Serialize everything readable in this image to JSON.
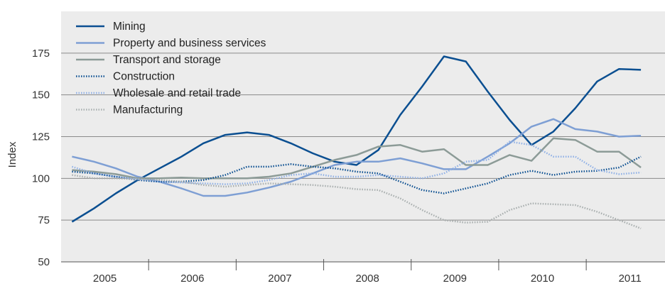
{
  "chart_data": {
    "type": "line",
    "ylabel": "Index",
    "xlabel": "",
    "ylim": [
      50,
      200
    ],
    "yticks": [
      50,
      75,
      100,
      125,
      150,
      175
    ],
    "xlim": [
      2004.5,
      2011.4
    ],
    "xticks": [
      2005,
      2006,
      2007,
      2008,
      2009,
      2010,
      2011
    ],
    "grid": "horizontal",
    "legend_position": "top-left",
    "series": [
      {
        "name": "Mining",
        "color": "#0b4f91",
        "style": "solid",
        "x": [
          2004.625,
          2004.875,
          2005.125,
          2005.375,
          2005.625,
          2005.875,
          2006.125,
          2006.375,
          2006.625,
          2006.875,
          2007.125,
          2007.375,
          2007.625,
          2007.875,
          2008.125,
          2008.375,
          2008.625,
          2008.875,
          2009.125,
          2009.375,
          2009.625,
          2009.875,
          2010.125,
          2010.375,
          2010.625,
          2010.875,
          2011.125
        ],
        "values": [
          74,
          82,
          91,
          99,
          106,
          113,
          121,
          126,
          127.5,
          126,
          121,
          115,
          110,
          108,
          117,
          138,
          155,
          173,
          170,
          152,
          135,
          120,
          128,
          142,
          158,
          165.5,
          165
        ]
      },
      {
        "name": "Property and business services",
        "color": "#7e9fd4",
        "style": "solid",
        "x": [
          2004.625,
          2004.875,
          2005.125,
          2005.375,
          2005.625,
          2005.875,
          2006.125,
          2006.375,
          2006.625,
          2006.875,
          2007.125,
          2007.375,
          2007.625,
          2007.875,
          2008.125,
          2008.375,
          2008.625,
          2008.875,
          2009.125,
          2009.375,
          2009.625,
          2009.875,
          2010.125,
          2010.375,
          2010.625,
          2010.875,
          2011.125
        ],
        "values": [
          113,
          110,
          106,
          101,
          98,
          94,
          89.5,
          89.5,
          91.5,
          94.5,
          98,
          103,
          108,
          110,
          110,
          112,
          109,
          105.5,
          105.5,
          113,
          121,
          131,
          135.5,
          129.5,
          128,
          125,
          125.5
        ]
      },
      {
        "name": "Transport and storage",
        "color": "#8c9b97",
        "style": "solid",
        "x": [
          2004.625,
          2004.875,
          2005.125,
          2005.375,
          2005.625,
          2005.875,
          2006.125,
          2006.375,
          2006.625,
          2006.875,
          2007.125,
          2007.375,
          2007.625,
          2007.875,
          2008.125,
          2008.375,
          2008.625,
          2008.875,
          2009.125,
          2009.375,
          2009.625,
          2009.875,
          2010.125,
          2010.375,
          2010.625,
          2010.875,
          2011.125
        ],
        "values": [
          105,
          104,
          102.5,
          100,
          100,
          100.5,
          100,
          100,
          100,
          101,
          103,
          107,
          111,
          114,
          119,
          120,
          116,
          117.5,
          108,
          108,
          114,
          110.5,
          124,
          123,
          116,
          116,
          106.5
        ]
      },
      {
        "name": "Construction",
        "color": "#0b4f91",
        "style": "dotted",
        "x": [
          2004.625,
          2004.875,
          2005.125,
          2005.375,
          2005.625,
          2005.875,
          2006.125,
          2006.375,
          2006.625,
          2006.875,
          2007.125,
          2007.375,
          2007.625,
          2007.875,
          2008.125,
          2008.375,
          2008.625,
          2008.875,
          2009.125,
          2009.375,
          2009.625,
          2009.875,
          2010.125,
          2010.375,
          2010.625,
          2010.875,
          2011.125
        ],
        "values": [
          104,
          103,
          101,
          99,
          98,
          98,
          99,
          102,
          107,
          107,
          108.5,
          107,
          106,
          104,
          103,
          98,
          93,
          91,
          94,
          97,
          102,
          104.5,
          102,
          104,
          104.5,
          106.5,
          113
        ]
      },
      {
        "name": "Wholesale and retail trade",
        "color": "#8fb0e6",
        "style": "dotted",
        "x": [
          2004.625,
          2004.875,
          2005.125,
          2005.375,
          2005.625,
          2005.875,
          2006.125,
          2006.375,
          2006.625,
          2006.875,
          2007.125,
          2007.375,
          2007.625,
          2007.875,
          2008.125,
          2008.375,
          2008.625,
          2008.875,
          2009.125,
          2009.375,
          2009.625,
          2009.875,
          2010.125,
          2010.375,
          2010.625,
          2010.875,
          2011.125
        ],
        "values": [
          107,
          103,
          101,
          99.5,
          98,
          97.5,
          97,
          96.5,
          97,
          99,
          102,
          103,
          101,
          101,
          102,
          101,
          100,
          103,
          110,
          111,
          122,
          120,
          113,
          113,
          105,
          102.5,
          103.5
        ]
      },
      {
        "name": "Manufacturing",
        "color": "#a8aeae",
        "style": "dotted",
        "x": [
          2004.625,
          2004.875,
          2005.125,
          2005.375,
          2005.625,
          2005.875,
          2006.125,
          2006.375,
          2006.625,
          2006.875,
          2007.125,
          2007.375,
          2007.625,
          2007.875,
          2008.125,
          2008.375,
          2008.625,
          2008.875,
          2009.125,
          2009.375,
          2009.625,
          2009.875,
          2010.125,
          2010.375,
          2010.625,
          2010.875,
          2011.125
        ],
        "values": [
          102,
          100,
          100,
          99.5,
          99,
          98,
          96,
          95,
          96,
          97,
          96.5,
          96,
          95,
          93.5,
          93,
          88,
          81,
          75,
          73.5,
          74,
          81,
          85,
          84.5,
          84,
          80,
          75,
          70
        ]
      }
    ]
  }
}
